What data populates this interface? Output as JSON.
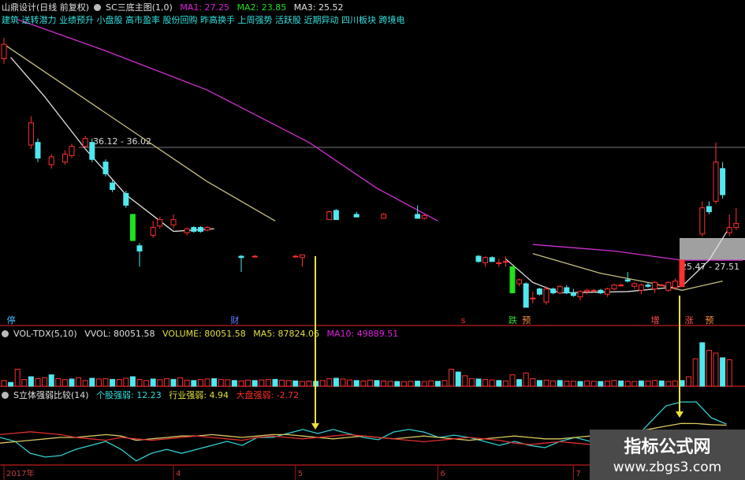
{
  "header": {
    "stock": "山鼎设计(日线 前复权)",
    "indicator": "SC三底主图(1,0)",
    "ma1": "MA1: 27.25",
    "ma2": "MA2: 23.85",
    "ma3": "MA3: 25.52",
    "concepts": "建筑 送转潜力 业绩预升 小盘股 高市盈率 股份回购 昨高换手 上周强势 活跃股 近期异动 四川板块 跨境电"
  },
  "volume_header": {
    "name": "VOL-TDX(5,10)",
    "vvol": "VVOL: 80051.58",
    "volume": "VOLUME: 80051.58",
    "ma5": "MA5: 87824.06",
    "ma10": "MA10: 49889.51"
  },
  "strength_header": {
    "name": "S立体强弱比较(14)",
    "stock": "个股强弱: 12.23",
    "industry": "行业强弱: 4.94",
    "market": "大盘强弱: -2.72"
  },
  "price_labels": {
    "high_line": "36.12 - 36.02",
    "range_box": "25.47 - 27.51"
  },
  "markers": [
    {
      "i": 1,
      "text": "停",
      "color": "#40c0ff"
    },
    {
      "i": 34,
      "text": "财",
      "color": "#6080ff"
    },
    {
      "i": 68,
      "text": "s",
      "color": "#ff3030"
    },
    {
      "i": 75,
      "text": "跌",
      "color": "#30e030"
    },
    {
      "i": 77,
      "text": "预",
      "color": "#ff9040"
    },
    {
      "i": 96,
      "text": "增",
      "color": "#ff5050"
    },
    {
      "i": 101,
      "text": "涨",
      "color": "#ff5050"
    },
    {
      "i": 104,
      "text": "预",
      "color": "#ff9040"
    }
  ],
  "x_axis": [
    {
      "i": 0,
      "label": "2017年"
    },
    {
      "i": 25,
      "label": "4"
    },
    {
      "i": 43,
      "label": "5"
    },
    {
      "i": 64,
      "label": "6"
    },
    {
      "i": 84,
      "label": "7"
    }
  ],
  "watermark": {
    "title": "指标公式网",
    "url": "www.zbgs3.com"
  },
  "colors": {
    "up": "#ff3030",
    "down": "#50e8f0",
    "limit_down": "#20e020",
    "ma1": "#d030d0",
    "ma2": "#c8c080",
    "ma3": "#e0e0e0",
    "arrow": "#f0e040",
    "divider": "#a01818"
  },
  "chart_data": {
    "type": "candlestick",
    "candles_ohlc": [
      [
        0,
        42.9,
        44.5,
        42.5,
        44.0
      ],
      [
        4,
        36.3,
        38.5,
        36.0,
        38.0
      ],
      [
        5,
        36.5,
        36.8,
        35.0,
        35.3
      ],
      [
        7,
        34.8,
        35.6,
        34.5,
        35.4
      ],
      [
        9,
        35.0,
        35.9,
        34.8,
        35.6
      ],
      [
        10,
        35.5,
        36.4,
        35.3,
        36.2
      ],
      [
        12,
        36.2,
        37.0,
        36.0,
        36.8
      ],
      [
        13,
        36.5,
        36.8,
        35.0,
        35.2
      ],
      [
        15,
        35.0,
        35.2,
        33.9,
        34.1
      ],
      [
        16,
        33.4,
        33.6,
        32.7,
        32.9
      ],
      [
        18,
        32.6,
        32.8,
        31.5,
        31.7
      ],
      [
        19,
        31.0,
        31.0,
        29.0,
        29.0
      ],
      [
        20,
        28.6,
        28.8,
        27.0,
        28.2
      ],
      [
        22,
        29.4,
        30.5,
        29.2,
        30.0
      ],
      [
        23,
        30.1,
        30.8,
        29.9,
        30.6
      ],
      [
        25,
        30.2,
        31.0,
        29.9,
        30.6
      ],
      [
        27,
        29.6,
        30.0,
        29.4,
        29.9
      ],
      [
        28,
        30.0,
        30.1,
        29.6,
        29.7
      ],
      [
        29,
        30.0,
        30.1,
        29.6,
        29.7
      ],
      [
        30,
        29.8,
        30.1,
        29.7,
        30.0
      ],
      [
        35,
        27.8,
        27.9,
        26.6,
        27.7
      ],
      [
        37,
        27.8,
        27.9,
        27.7,
        27.8
      ],
      [
        43,
        27.8,
        27.9,
        27.7,
        27.8
      ],
      [
        44,
        27.7,
        27.9,
        27.0,
        27.9
      ],
      [
        48,
        30.6,
        31.3,
        30.6,
        31.2
      ],
      [
        49,
        31.3,
        31.4,
        30.6,
        30.6
      ],
      [
        52,
        31.0,
        31.2,
        30.8,
        30.8
      ],
      [
        56,
        30.7,
        31.1,
        30.7,
        31.0
      ],
      [
        61,
        31.0,
        31.7,
        30.7,
        30.7
      ],
      [
        62,
        30.7,
        31.0,
        30.6,
        30.9
      ],
      [
        70,
        27.8,
        27.9,
        27.3,
        27.4
      ],
      [
        71,
        27.3,
        27.8,
        27.0,
        27.7
      ],
      [
        72,
        27.7,
        27.8,
        27.4,
        27.4
      ],
      [
        73,
        27.3,
        27.6,
        27.0,
        27.3
      ],
      [
        74,
        27.4,
        27.8,
        27.0,
        27.4
      ],
      [
        75,
        27.0,
        27.0,
        25.0,
        25.0
      ],
      [
        76,
        25.7,
        26.1,
        25.5,
        26.0
      ],
      [
        77,
        25.7,
        25.8,
        23.9,
        23.9
      ],
      [
        78,
        24.6,
        25.1,
        24.2,
        24.6
      ],
      [
        79,
        25.3,
        25.4,
        24.8,
        24.9
      ],
      [
        80,
        24.3,
        25.5,
        24.1,
        25.3
      ],
      [
        81,
        25.3,
        25.4,
        24.9,
        25.0
      ],
      [
        82,
        25.0,
        25.6,
        24.9,
        25.5
      ],
      [
        83,
        25.4,
        25.6,
        24.9,
        25.0
      ],
      [
        84,
        25.0,
        25.3,
        24.7,
        24.8
      ],
      [
        85,
        24.7,
        25.2,
        24.4,
        25.1
      ],
      [
        86,
        25.1,
        25.3,
        24.9,
        25.2
      ],
      [
        87,
        25.2,
        25.3,
        25.0,
        25.2
      ],
      [
        88,
        25.2,
        25.3,
        24.9,
        25.0
      ],
      [
        89,
        24.9,
        25.4,
        24.7,
        25.3
      ],
      [
        90,
        25.3,
        25.7,
        25.2,
        25.6
      ],
      [
        91,
        25.6,
        25.7,
        25.5,
        25.6
      ],
      [
        92,
        26.0,
        26.6,
        25.8,
        25.9
      ],
      [
        93,
        25.5,
        25.8,
        25.3,
        25.7
      ],
      [
        94,
        25.2,
        25.7,
        24.9,
        25.6
      ],
      [
        95,
        25.6,
        25.8,
        25.4,
        25.5
      ],
      [
        96,
        25.3,
        25.9,
        25.0,
        25.8
      ],
      [
        97,
        25.6,
        25.7,
        25.5,
        25.6
      ],
      [
        98,
        25.2,
        25.9,
        25.1,
        25.8
      ],
      [
        99,
        25.4,
        26.1,
        25.2,
        25.9
      ],
      [
        100,
        25.47,
        27.51,
        25.47,
        27.51
      ],
      [
        103,
        29.5,
        32.0,
        29.3,
        31.5
      ],
      [
        104,
        31.6,
        32.0,
        31.0,
        31.2
      ],
      [
        105,
        32.0,
        36.5,
        31.8,
        35.0
      ],
      [
        106,
        34.5,
        35.0,
        32.2,
        32.5
      ],
      [
        107,
        29.6,
        31.0,
        29.3,
        30.0
      ],
      [
        108,
        30.0,
        31.5,
        29.8,
        30.3
      ]
    ],
    "limit_down_indices": [
      19,
      75
    ],
    "ma1": [
      [
        2,
        45.9
      ],
      [
        15,
        43.5
      ],
      [
        30,
        40.5
      ],
      [
        45,
        36.5
      ],
      [
        55,
        33.0
      ],
      [
        64,
        30.5
      ],
      null,
      [
        78,
        28.7
      ],
      [
        90,
        28.2
      ],
      [
        100,
        27.5
      ],
      [
        109,
        27.5
      ]
    ],
    "ma2": [
      [
        0,
        44.0
      ],
      [
        10,
        40.5
      ],
      [
        20,
        37.0
      ],
      [
        30,
        33.5
      ],
      [
        40,
        30.5
      ],
      [
        40,
        30.5
      ],
      null,
      [
        78,
        28.0
      ],
      [
        88,
        26.5
      ],
      [
        96,
        25.7
      ],
      [
        100,
        25.2
      ],
      [
        106,
        25.9
      ]
    ],
    "ma3": [
      [
        1,
        43.0
      ],
      [
        6,
        40.0
      ],
      [
        12,
        36.0
      ],
      [
        18,
        32.5
      ],
      [
        25,
        29.7
      ],
      [
        31,
        29.9
      ],
      null,
      [
        74,
        27.6
      ],
      [
        78,
        25.8
      ],
      [
        82,
        25.0
      ],
      [
        92,
        25.1
      ],
      [
        100,
        25.5
      ],
      [
        104,
        27.5
      ],
      [
        107,
        30.0
      ]
    ],
    "highlight_price": 36.12,
    "volume": [
      30000,
      20000,
      90000,
      35000,
      50000,
      40000,
      45000,
      60000,
      40000,
      35000,
      38000,
      45000,
      30000,
      42000,
      38000,
      40000,
      36000,
      35000,
      42000,
      50000,
      35000,
      30000,
      38000,
      34000,
      40000,
      36000,
      45000,
      32000,
      30000,
      35000,
      38000,
      40000,
      36000,
      34000,
      30000,
      28000,
      32000,
      30000,
      33000,
      35000,
      36000,
      32000,
      30000,
      28000,
      25000,
      27000,
      26000,
      30000,
      40000,
      42000,
      38000,
      33000,
      30000,
      28000,
      32000,
      30000,
      28000,
      26000,
      25000,
      24000,
      26000,
      27000,
      25000,
      28000,
      26000,
      30000,
      90000,
      75000,
      55000,
      40000,
      38000,
      35000,
      33000,
      30000,
      28000,
      60000,
      35000,
      70000,
      40000,
      30000,
      32000,
      28000,
      30000,
      27000,
      26000,
      25000,
      28000,
      26000,
      25000,
      27000,
      30000,
      28000,
      26000,
      25000,
      28000,
      27000,
      30000,
      28000,
      25000,
      28000,
      30000,
      50000,
      145000,
      230000,
      190000,
      175000,
      150000,
      140000
    ],
    "strength": {
      "stock": [
        0,
        -1.4,
        -5.6,
        -6.9,
        -6.4,
        -4.2,
        -2.8,
        -1.4,
        -4.2,
        -8.3,
        -5.6,
        -4.2,
        -5.6,
        -4.2,
        -2.8,
        -1.4,
        -2.8,
        0,
        0,
        1.4,
        2.8,
        1.4,
        2.8,
        1.4,
        0,
        -0.8,
        1.9,
        2.8,
        1.9,
        0,
        0.8,
        0,
        -1.4,
        -2.8,
        -1.4,
        -2.8,
        -3.6,
        -1.4,
        0,
        -1.4,
        -2.8,
        -1.4,
        0,
        5.6,
        11.1,
        12.5,
        12.5,
        6.9,
        4.7
      ],
      "industry": [
        -2,
        -1.5,
        -1,
        -0.5,
        0,
        0,
        0.5,
        1,
        0.5,
        -1,
        -0.5,
        0,
        0.5,
        0.5,
        1,
        0.5,
        0,
        0.5,
        1,
        1,
        0.5,
        0,
        -0.5,
        0,
        0.5,
        0,
        -0.5,
        0,
        0.5,
        0,
        -0.5,
        -1,
        -0.5,
        0,
        0.5,
        0,
        -0.5,
        -0.5,
        0,
        0.5,
        1,
        1.5,
        2,
        3,
        4,
        4.94,
        4.9,
        4.5,
        4.3
      ],
      "market": [
        1,
        1.5,
        2,
        1.5,
        1,
        0,
        -0.5,
        -1,
        0,
        -0.5,
        -1,
        -0.5,
        0,
        0.5,
        0,
        -0.5,
        -1,
        0,
        0.5,
        0,
        -0.5,
        0,
        0.5,
        1,
        0.5,
        0,
        -0.5,
        -1,
        -1.5,
        -1,
        -0.5,
        0,
        -0.5,
        -1,
        -2,
        -2.5,
        -2,
        -1.5,
        -2,
        -2.5,
        -3,
        -2.5,
        -2,
        -2.5,
        -2.72,
        -2.7,
        -2.6,
        -2.5,
        -2.5
      ]
    }
  }
}
